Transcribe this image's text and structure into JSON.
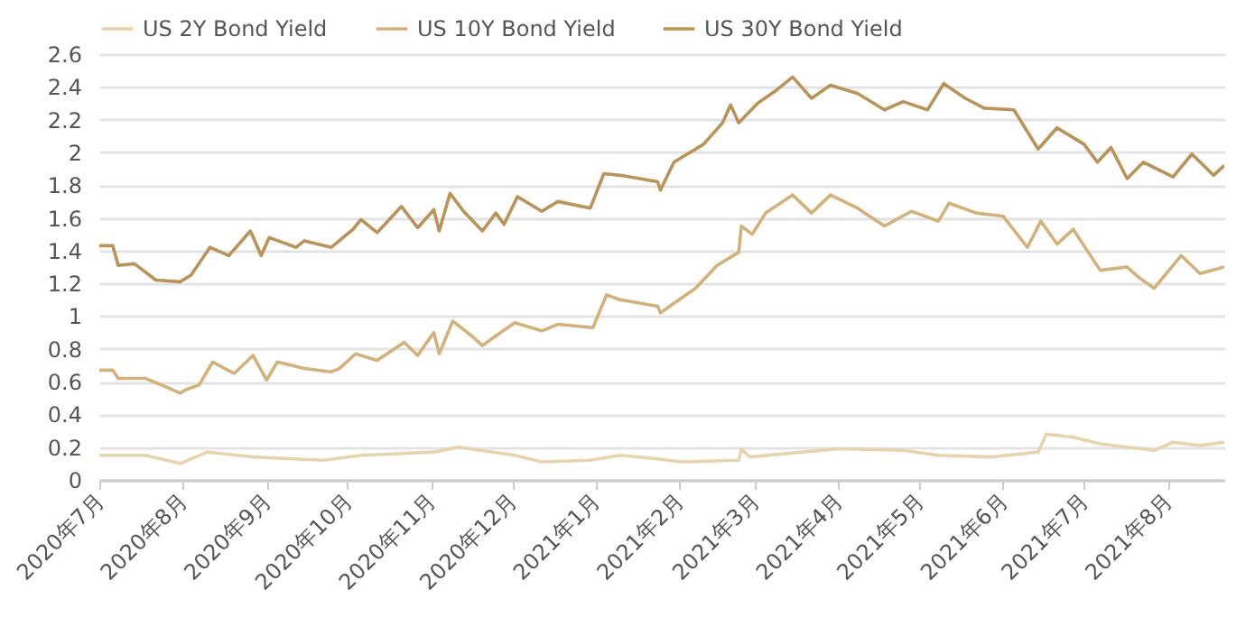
{
  "chart_data": {
    "type": "line",
    "legend": "top",
    "grid": "y",
    "line_style": "solid",
    "marker": "none",
    "xlim": [
      "2020-07-01",
      "2021-08-22"
    ],
    "xticks": [
      {
        "value": "2020-07",
        "label": "2020年7月"
      },
      {
        "value": "2020-08",
        "label": "2020年8月"
      },
      {
        "value": "2020-09",
        "label": "2020年9月"
      },
      {
        "value": "2020-10",
        "label": "2020年10月"
      },
      {
        "value": "2020-11",
        "label": "2020年11月"
      },
      {
        "value": "2020-12",
        "label": "2020年12月"
      },
      {
        "value": "2021-01",
        "label": "2021年1月"
      },
      {
        "value": "2021-02",
        "label": "2021年2月"
      },
      {
        "value": "2021-03",
        "label": "2021年3月"
      },
      {
        "value": "2021-04",
        "label": "2021年4月"
      },
      {
        "value": "2021-05",
        "label": "2021年5月"
      },
      {
        "value": "2021-06",
        "label": "2021年6月"
      },
      {
        "value": "2021-07",
        "label": "2021年7月"
      },
      {
        "value": "2021-08",
        "label": "2021年8月"
      }
    ],
    "ylim": [
      0,
      2.6
    ],
    "yticks": [
      0,
      0.2,
      0.4,
      0.6,
      0.8,
      1,
      1.2,
      1.4,
      1.6,
      1.8,
      2,
      2.2,
      2.4,
      2.6
    ],
    "series": [
      {
        "name": "US 2Y Bond Yield",
        "color": "#e6d4ae",
        "x": [
          "2020-07-01",
          "2020-07-18",
          "2020-07-31",
          "2020-08-10",
          "2020-08-27",
          "2020-09-22",
          "2020-10-06",
          "2020-11-02",
          "2020-11-11",
          "2020-12-02",
          "2020-12-12",
          "2020-12-30",
          "2021-01-10",
          "2021-01-23",
          "2021-02-02",
          "2021-02-23",
          "2021-02-24",
          "2021-02-27",
          "2021-04-01",
          "2021-04-25",
          "2021-05-08",
          "2021-05-28",
          "2021-06-14",
          "2021-06-17",
          "2021-06-27",
          "2021-07-07",
          "2021-07-27",
          "2021-08-03",
          "2021-08-13",
          "2021-08-22"
        ],
        "values": [
          0.15,
          0.15,
          0.1,
          0.17,
          0.14,
          0.12,
          0.15,
          0.17,
          0.2,
          0.15,
          0.11,
          0.12,
          0.15,
          0.13,
          0.11,
          0.12,
          0.19,
          0.14,
          0.19,
          0.18,
          0.15,
          0.14,
          0.17,
          0.28,
          0.26,
          0.22,
          0.18,
          0.23,
          0.21,
          0.23
        ]
      },
      {
        "name": "US 10Y Bond Yield",
        "color": "#d2b27c",
        "x": [
          "2020-07-01",
          "2020-07-06",
          "2020-07-08",
          "2020-07-18",
          "2020-07-24",
          "2020-07-31",
          "2020-08-02",
          "2020-08-07",
          "2020-08-12",
          "2020-08-20",
          "2020-08-27",
          "2020-09-01",
          "2020-09-05",
          "2020-09-15",
          "2020-09-25",
          "2020-09-28",
          "2020-10-04",
          "2020-10-12",
          "2020-10-22",
          "2020-10-27",
          "2020-11-02",
          "2020-11-04",
          "2020-11-09",
          "2020-11-16",
          "2020-11-20",
          "2020-11-25",
          "2020-12-02",
          "2020-12-12",
          "2020-12-18",
          "2020-12-31",
          "2021-01-05",
          "2021-01-10",
          "2021-01-24",
          "2021-01-25",
          "2021-02-07",
          "2021-02-15",
          "2021-02-23",
          "2021-02-24",
          "2021-02-28",
          "2021-03-05",
          "2021-03-15",
          "2021-03-22",
          "2021-03-29",
          "2021-04-08",
          "2021-04-18",
          "2021-04-28",
          "2021-05-08",
          "2021-05-12",
          "2021-05-22",
          "2021-06-01",
          "2021-06-10",
          "2021-06-15",
          "2021-06-21",
          "2021-06-27",
          "2021-07-07",
          "2021-07-17",
          "2021-07-21",
          "2021-07-27",
          "2021-08-06",
          "2021-08-13",
          "2021-08-22"
        ],
        "values": [
          0.67,
          0.67,
          0.62,
          0.62,
          0.58,
          0.53,
          0.55,
          0.58,
          0.72,
          0.65,
          0.76,
          0.61,
          0.72,
          0.68,
          0.66,
          0.68,
          0.77,
          0.73,
          0.84,
          0.76,
          0.9,
          0.77,
          0.97,
          0.88,
          0.82,
          0.88,
          0.96,
          0.91,
          0.95,
          0.93,
          1.13,
          1.1,
          1.06,
          1.02,
          1.17,
          1.31,
          1.39,
          1.55,
          1.5,
          1.63,
          1.74,
          1.63,
          1.74,
          1.66,
          1.55,
          1.64,
          1.58,
          1.69,
          1.63,
          1.61,
          1.42,
          1.58,
          1.44,
          1.53,
          1.28,
          1.3,
          1.24,
          1.17,
          1.37,
          1.26,
          1.3
        ]
      },
      {
        "name": "US 30Y Bond Yield",
        "color": "#b8945a",
        "x": [
          "2020-07-01",
          "2020-07-06",
          "2020-07-08",
          "2020-07-14",
          "2020-07-22",
          "2020-07-31",
          "2020-08-04",
          "2020-08-11",
          "2020-08-18",
          "2020-08-26",
          "2020-08-30",
          "2020-09-02",
          "2020-09-12",
          "2020-09-15",
          "2020-09-25",
          "2020-10-03",
          "2020-10-06",
          "2020-10-12",
          "2020-10-21",
          "2020-10-27",
          "2020-11-02",
          "2020-11-04",
          "2020-11-08",
          "2020-11-13",
          "2020-11-20",
          "2020-11-25",
          "2020-11-28",
          "2020-12-03",
          "2020-12-12",
          "2020-12-18",
          "2020-12-30",
          "2021-01-04",
          "2021-01-10",
          "2021-01-24",
          "2021-01-25",
          "2021-01-30",
          "2021-02-10",
          "2021-02-17",
          "2021-02-20",
          "2021-02-23",
          "2021-03-02",
          "2021-03-09",
          "2021-03-15",
          "2021-03-22",
          "2021-03-29",
          "2021-04-08",
          "2021-04-18",
          "2021-04-25",
          "2021-05-04",
          "2021-05-10",
          "2021-05-18",
          "2021-05-25",
          "2021-06-05",
          "2021-06-14",
          "2021-06-21",
          "2021-07-01",
          "2021-07-06",
          "2021-07-11",
          "2021-07-17",
          "2021-07-23",
          "2021-08-03",
          "2021-08-10",
          "2021-08-18",
          "2021-08-22"
        ],
        "values": [
          1.43,
          1.43,
          1.31,
          1.32,
          1.22,
          1.21,
          1.25,
          1.42,
          1.37,
          1.52,
          1.37,
          1.48,
          1.42,
          1.46,
          1.42,
          1.53,
          1.59,
          1.51,
          1.67,
          1.54,
          1.65,
          1.52,
          1.75,
          1.64,
          1.52,
          1.63,
          1.56,
          1.73,
          1.64,
          1.7,
          1.66,
          1.87,
          1.86,
          1.82,
          1.77,
          1.94,
          2.05,
          2.18,
          2.29,
          2.18,
          2.3,
          2.38,
          2.46,
          2.33,
          2.41,
          2.36,
          2.26,
          2.31,
          2.26,
          2.42,
          2.33,
          2.27,
          2.26,
          2.02,
          2.15,
          2.05,
          1.94,
          2.03,
          1.84,
          1.94,
          1.85,
          1.99,
          1.86,
          1.92
        ]
      }
    ]
  }
}
